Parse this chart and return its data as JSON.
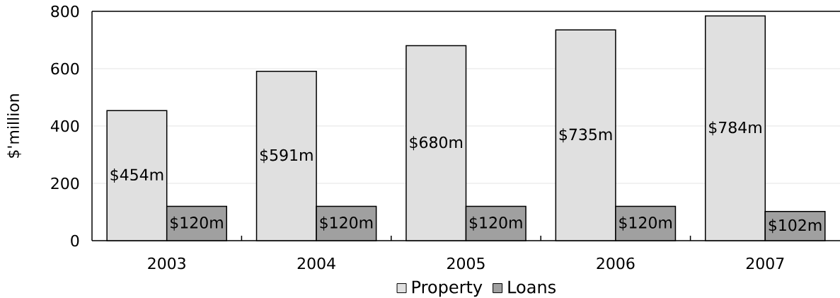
{
  "chart_data": {
    "type": "bar",
    "ylabel": "$'million",
    "categories": [
      "2003",
      "2004",
      "2005",
      "2006",
      "2007"
    ],
    "series": [
      {
        "name": "Property",
        "color": "#e0e0e0",
        "values": [
          454,
          591,
          680,
          735,
          784
        ],
        "value_labels": [
          "$454m",
          "$591m",
          "$680m",
          "$735m",
          "$784m"
        ]
      },
      {
        "name": "Loans",
        "color": "#a0a0a0",
        "values": [
          120,
          120,
          120,
          120,
          102
        ],
        "value_labels": [
          "$120m",
          "$120m",
          "$120m",
          "$120m",
          "$102m"
        ]
      }
    ],
    "ylim": [
      0,
      800
    ],
    "yticks": [
      0,
      200,
      400,
      600,
      800
    ],
    "grid": "y",
    "legend": "bottom"
  }
}
